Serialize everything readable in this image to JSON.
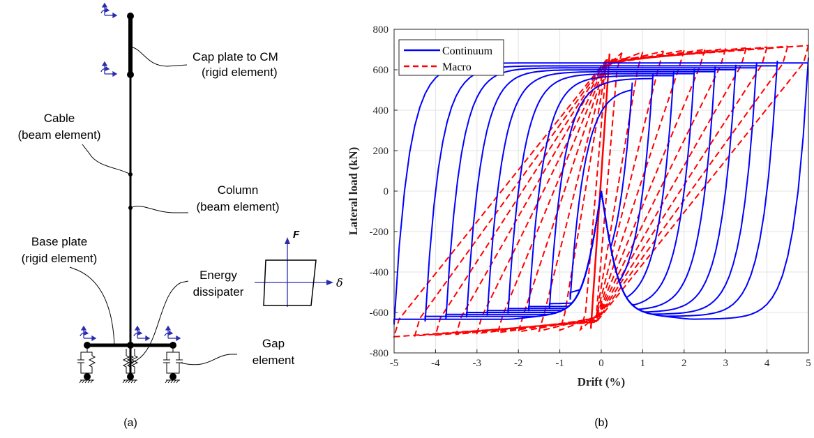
{
  "diagram": {
    "labels": {
      "cap_plate_line1": "Cap plate to CM",
      "cap_plate_line2": "(rigid element)",
      "cable_line1": "Cable",
      "cable_line2": "(beam element)",
      "column_line1": "Column",
      "column_line2": "(beam element)",
      "base_plate_line1": "Base plate",
      "base_plate_line2": "(rigid element)",
      "energy_line1": "Energy",
      "energy_line2": "dissipater",
      "gap_line1": "Gap",
      "gap_line2": "element",
      "force_symbol": "F",
      "disp_symbol": "δ"
    },
    "panel_label": "(a)"
  },
  "chart_panel_label": "(b)",
  "colors": {
    "continuum": "#0000ff",
    "macro": "#ff0000",
    "diagram_arrows": "#2b2bb0",
    "grid": "#e3e3e3"
  },
  "chart_data": {
    "type": "line",
    "title": "",
    "xlabel": "Drift (%)",
    "ylabel": "Lateral load (kN)",
    "xlim": [
      -5,
      5
    ],
    "ylim": [
      -800,
      800
    ],
    "xticks": [
      -5,
      -4,
      -3,
      -2,
      -1,
      0,
      1,
      2,
      3,
      4,
      5
    ],
    "yticks": [
      -800,
      -600,
      -400,
      -200,
      0,
      200,
      400,
      600,
      800
    ],
    "grid": true,
    "legend_position": "top-left",
    "series": [
      {
        "name": "Continuum",
        "style": "solid",
        "color": "#0000ff",
        "amplitudes": [
          0.75,
          1.25,
          1.75,
          2.25,
          2.75,
          3.25,
          3.75,
          4.25,
          5.0
        ],
        "peak_load_at_max_drift": 625,
        "yield_drift": 0.5,
        "yield_load": 450
      },
      {
        "name": "Macro",
        "style": "dashed",
        "color": "#ff0000",
        "amplitudes": [
          0.5,
          1.0,
          1.5,
          2.0,
          2.5,
          3.0,
          3.5,
          4.0,
          4.5,
          5.0
        ],
        "peak_load_at_max_drift": 720,
        "yield_drift": 0.12,
        "yield_load": 680
      }
    ]
  }
}
